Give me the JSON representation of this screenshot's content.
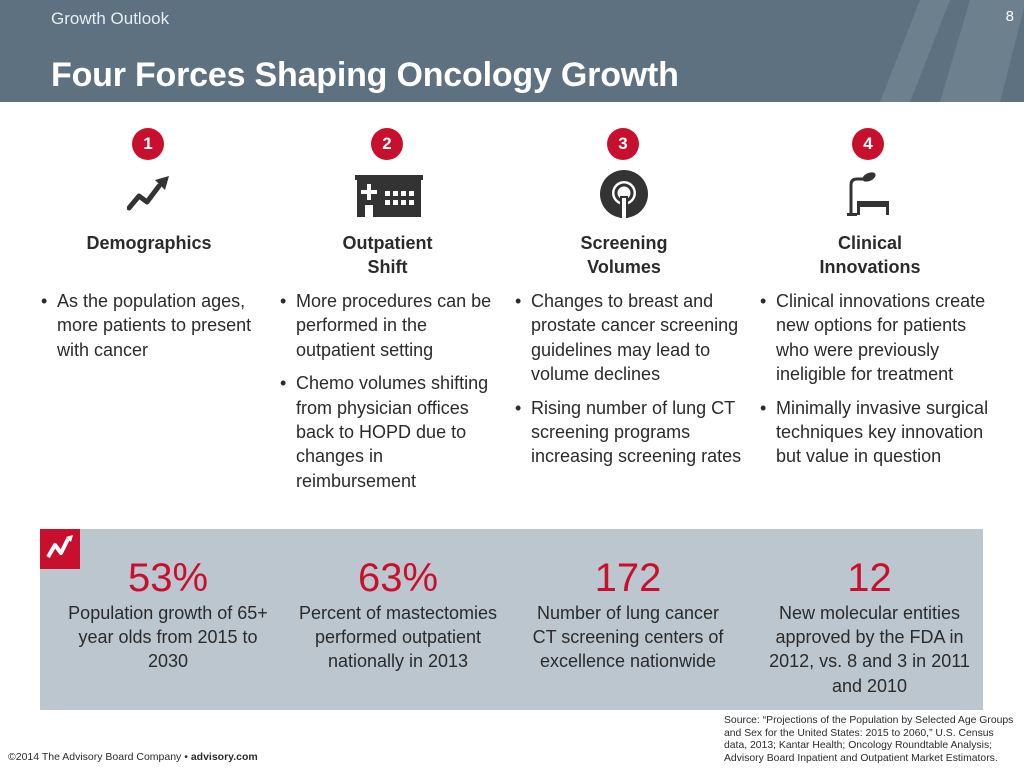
{
  "header": {
    "section": "Growth Outlook",
    "title": "Four Forces Shaping Oncology Growth",
    "page_number": "8"
  },
  "forces": [
    {
      "number": "1",
      "icon": "trend-up-icon",
      "title_line1": "Demographics",
      "title_line2": "",
      "bullets": [
        "As the population ages, more patients to present with cancer"
      ]
    },
    {
      "number": "2",
      "icon": "hospital-icon",
      "title_line1": "Outpatient",
      "title_line2": "Shift",
      "bullets": [
        "More procedures can be performed in the outpatient setting",
        "Chemo volumes shifting from physician offices back to HOPD due to changes in reimbursement"
      ]
    },
    {
      "number": "3",
      "icon": "ct-scanner-icon",
      "title_line1": "Screening",
      "title_line2": "Volumes",
      "bullets": [
        "Changes to breast and prostate cancer screening guidelines may lead to volume declines",
        "Rising number of lung CT screening programs increasing screening rates"
      ]
    },
    {
      "number": "4",
      "icon": "surgical-table-icon",
      "title_line1": "Clinical",
      "title_line2": "Innovations",
      "bullets": [
        "Clinical innovations create new options for patients who were previously ineligible for treatment",
        "Minimally invasive surgical techniques key innovation but value in question"
      ]
    }
  ],
  "stats": [
    {
      "value": "53%",
      "description": "Population growth of 65+ year olds from 2015 to 2030"
    },
    {
      "value": "63%",
      "description": "Percent of mastectomies performed outpatient nationally in 2013"
    },
    {
      "value": "172",
      "description": "Number of lung cancer CT screening centers of excellence nationwide"
    },
    {
      "value": "12",
      "description": "New molecular entities approved by the FDA in 2012, vs. 8 and 3 in 2011 and 2010"
    }
  ],
  "source": "Source: “Projections of the Population by Selected Age Groups and Sex for the United States: 2015 to 2060,” U.S. Census data, 2013; Kantar Health; Oncology Roundtable Analysis; Advisory Board Inpatient and Outpatient Market Estimators.",
  "footer": {
    "copyright": "©2014 The Advisory Board Company • ",
    "site": "advisory.com"
  },
  "colors": {
    "header_bg": "#5d7181",
    "accent_red": "#c8102e",
    "stats_panel_bg": "#bcc6ce"
  }
}
